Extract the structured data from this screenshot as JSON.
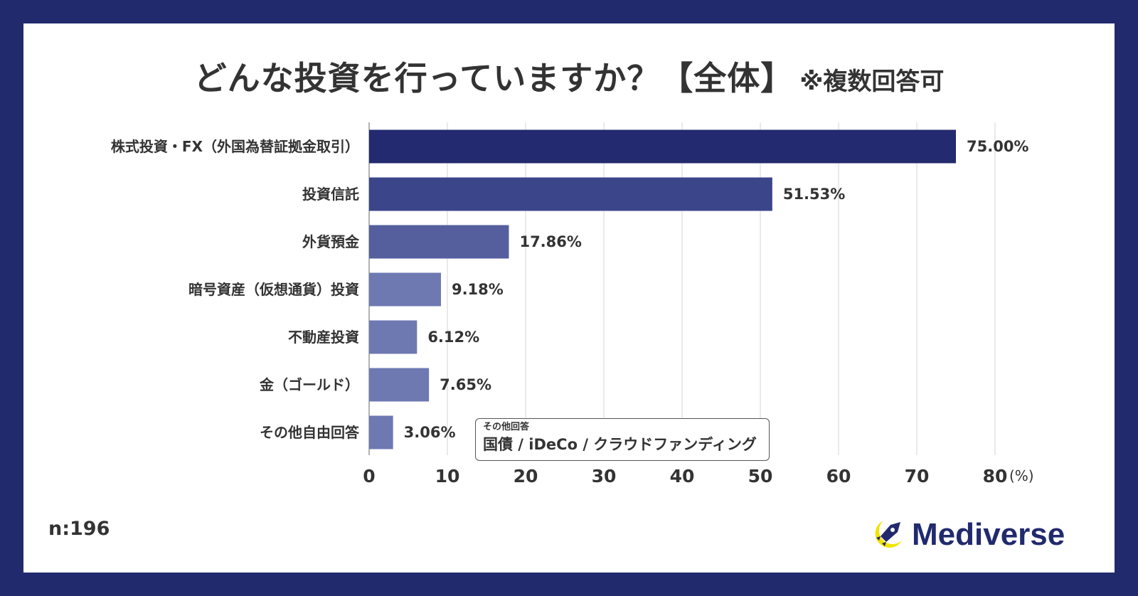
{
  "title": {
    "main": "どんな投資を行っていますか？【全体】",
    "note": "※複数回答可"
  },
  "colors": {
    "background_frame": "#222a6e",
    "bar_shades": [
      "#232a6f",
      "#3b4589",
      "#555f9e",
      "#6e79b2",
      "#6e79b2",
      "#6e79b2",
      "#6e79b2"
    ],
    "logo_yellow": "#f2e300"
  },
  "chart_data": {
    "type": "bar",
    "orientation": "horizontal",
    "categories": [
      "株式投資・FX（外国為替証拠金取引）",
      "投資信託",
      "外貨預金",
      "暗号資産（仮想通貨）投資",
      "不動産投資",
      "金（ゴールド）",
      "その他自由回答"
    ],
    "values": [
      75.0,
      51.53,
      17.86,
      9.18,
      6.12,
      7.65,
      3.06
    ],
    "value_labels": [
      "75.00%",
      "51.53%",
      "17.86%",
      "9.18%",
      "6.12%",
      "7.65%",
      "3.06%"
    ],
    "xlim": [
      0,
      80
    ],
    "ticks": [
      "0",
      "10",
      "20",
      "30",
      "40",
      "50",
      "60",
      "70",
      "80"
    ],
    "unit": "(%)",
    "grid": true
  },
  "other_answers": {
    "heading": "その他回答",
    "text": "国債 / iDeCo / クラウドファンディング"
  },
  "sample_size": "n:196",
  "brand": {
    "name": "Mediverse",
    "icon": "rocket-moon-icon"
  }
}
